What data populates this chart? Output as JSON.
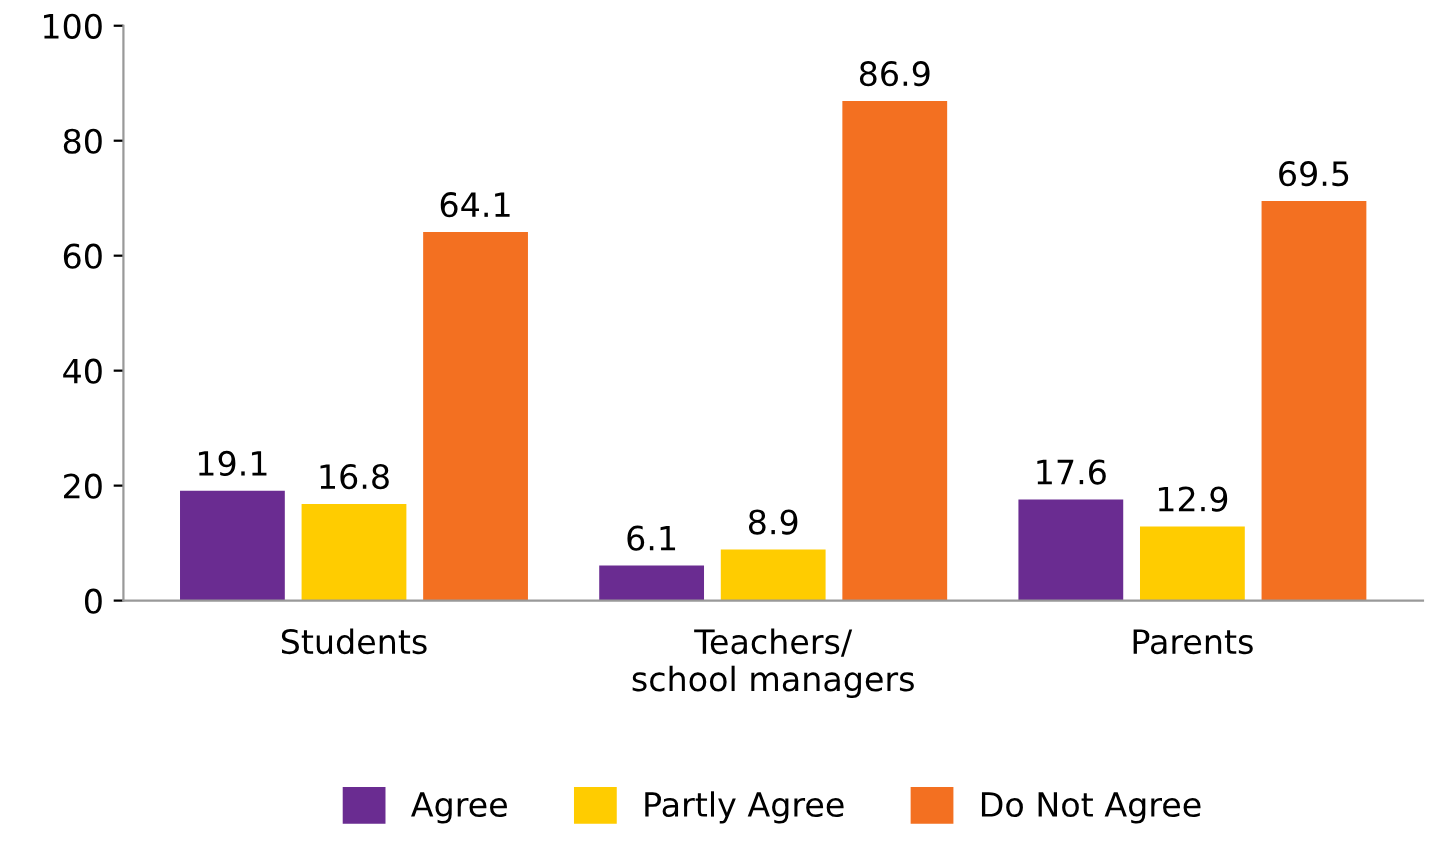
{
  "chart_data": {
    "type": "bar",
    "categories": [
      "Students",
      "Teachers/\nschool managers",
      "Parents"
    ],
    "series": [
      {
        "name": "Agree",
        "color": "#6a2c91",
        "values": [
          19.1,
          6.1,
          17.6
        ]
      },
      {
        "name": "Partly Agree",
        "color": "#ffcc00",
        "values": [
          16.8,
          8.9,
          12.9
        ]
      },
      {
        "name": "Do Not Agree",
        "color": "#f37021",
        "values": [
          64.1,
          86.9,
          69.5
        ]
      }
    ],
    "ylim": [
      0,
      100
    ],
    "yticks": [
      0,
      20,
      40,
      60,
      80,
      100
    ],
    "data_labels": true,
    "legend": "bottom",
    "grid": false
  }
}
